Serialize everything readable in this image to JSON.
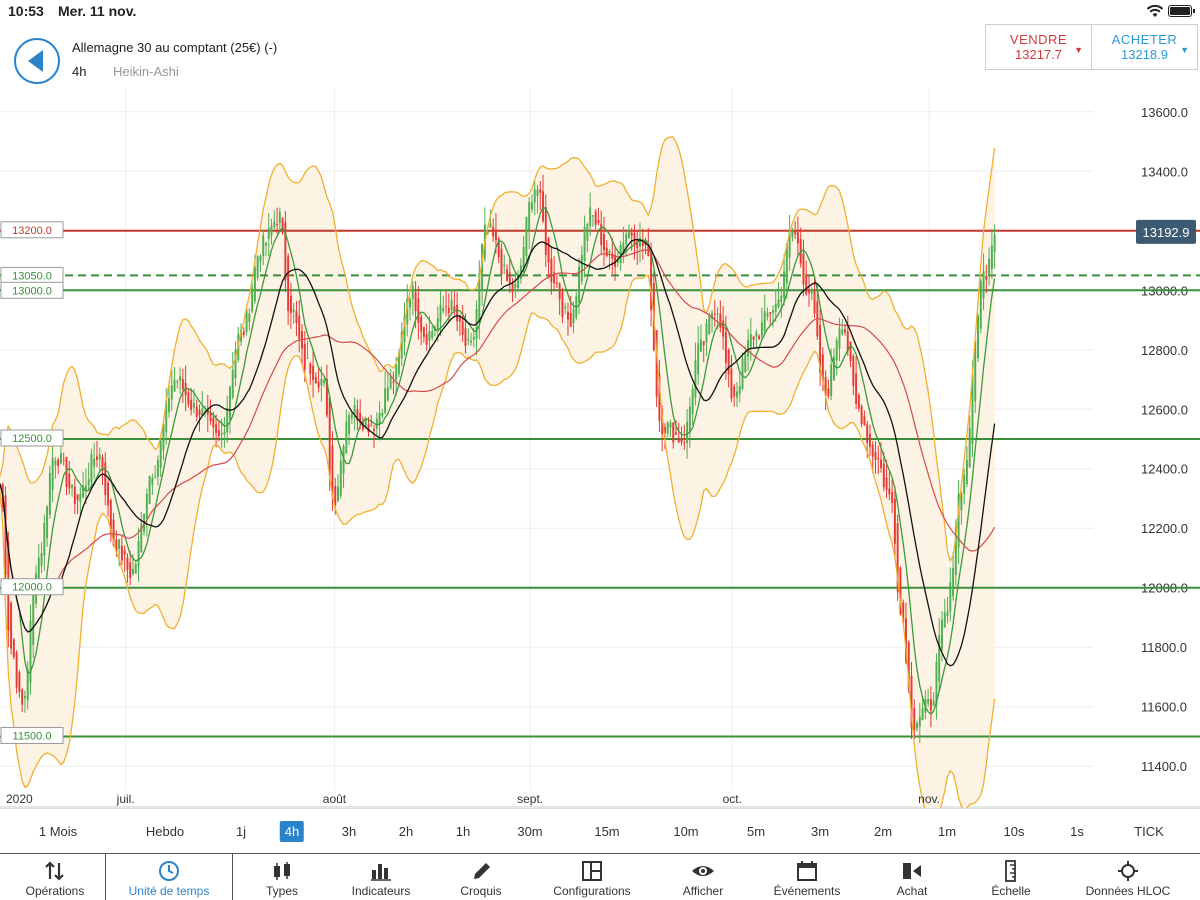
{
  "status_bar": {
    "time": "10:53",
    "date": "Mer. 11 nov."
  },
  "header": {
    "title": "Allemagne 30 au comptant (25€) (-)",
    "timeframe": "4h",
    "chart_type": "Heikin-Ashi"
  },
  "trade": {
    "sell_label": "VENDRE",
    "sell_price": "13217.7",
    "buy_label": "ACHETER",
    "buy_price": "13218.9",
    "sell_color": "#d23b3b",
    "buy_color": "#2b9ad3"
  },
  "chart_data": {
    "type": "candlestick",
    "y_ticks": [
      "13600.0",
      "13400.0",
      "13200.0",
      "13000.0",
      "12800.0",
      "12600.0",
      "12400.0",
      "12200.0",
      "12000.0",
      "11800.0",
      "11600.0",
      "11400.0"
    ],
    "ylim": [
      11320,
      13680
    ],
    "x_labels": [
      {
        "label": "2020",
        "t": 0
      },
      {
        "label": "juil.",
        "t": 0.115
      },
      {
        "label": "août",
        "t": 0.306
      },
      {
        "label": "sept.",
        "t": 0.485
      },
      {
        "label": "oct.",
        "t": 0.67
      },
      {
        "label": "nov.",
        "t": 0.85
      }
    ],
    "current_price": "13192.9",
    "current_value": 13192.9,
    "levels": [
      {
        "label": "13200.0",
        "value": 13200,
        "color": "#c0392b",
        "style": "solid"
      },
      {
        "label": "13050.0",
        "value": 13050,
        "color": "#3a8f3a",
        "style": "dashed"
      },
      {
        "label": "13000.0",
        "value": 13000,
        "color": "#3a8f3a",
        "style": "solid"
      },
      {
        "label": "12500.0",
        "value": 12500,
        "color": "#3a8f3a",
        "style": "solid"
      },
      {
        "label": "12000.0",
        "value": 12000,
        "color": "#3a8f3a",
        "style": "solid"
      },
      {
        "label": "11500.0",
        "value": 11500,
        "color": "#3a8f3a",
        "style": "solid"
      }
    ],
    "price_path": [
      [
        0,
        12350
      ],
      [
        0.01,
        11800
      ],
      [
        0.02,
        11600
      ],
      [
        0.035,
        12100
      ],
      [
        0.05,
        12450
      ],
      [
        0.07,
        12300
      ],
      [
        0.09,
        12450
      ],
      [
        0.105,
        12150
      ],
      [
        0.12,
        12050
      ],
      [
        0.14,
        12400
      ],
      [
        0.16,
        12700
      ],
      [
        0.18,
        12600
      ],
      [
        0.2,
        12500
      ],
      [
        0.22,
        12850
      ],
      [
        0.24,
        13150
      ],
      [
        0.255,
        13250
      ],
      [
        0.265,
        12950
      ],
      [
        0.28,
        12750
      ],
      [
        0.295,
        12700
      ],
      [
        0.305,
        12300
      ],
      [
        0.32,
        12600
      ],
      [
        0.34,
        12550
      ],
      [
        0.36,
        12700
      ],
      [
        0.375,
        13000
      ],
      [
        0.39,
        12850
      ],
      [
        0.41,
        12950
      ],
      [
        0.43,
        12800
      ],
      [
        0.445,
        13200
      ],
      [
        0.47,
        13000
      ],
      [
        0.49,
        13350
      ],
      [
        0.505,
        13050
      ],
      [
        0.52,
        12900
      ],
      [
        0.54,
        13250
      ],
      [
        0.56,
        13100
      ],
      [
        0.575,
        13200
      ],
      [
        0.59,
        13150
      ],
      [
        0.605,
        12550
      ],
      [
        0.625,
        12500
      ],
      [
        0.64,
        12800
      ],
      [
        0.655,
        12950
      ],
      [
        0.67,
        12650
      ],
      [
        0.69,
        12850
      ],
      [
        0.71,
        12950
      ],
      [
        0.725,
        13200
      ],
      [
        0.74,
        13000
      ],
      [
        0.755,
        12650
      ],
      [
        0.77,
        12900
      ],
      [
        0.785,
        12600
      ],
      [
        0.8,
        12450
      ],
      [
        0.815,
        12300
      ],
      [
        0.825,
        11900
      ],
      [
        0.835,
        11550
      ],
      [
        0.85,
        11600
      ],
      [
        0.865,
        11900
      ],
      [
        0.88,
        12350
      ],
      [
        0.9,
        13050
      ],
      [
        0.91,
        13200
      ]
    ],
    "series": [
      {
        "name": "MA noire",
        "color": "#111111"
      },
      {
        "name": "MA rouge",
        "color": "#d44b4b"
      },
      {
        "name": "MA verte",
        "color": "#3a9a3a"
      },
      {
        "name": "Bandes de Bollinger",
        "color": "#f0b030"
      }
    ],
    "up_color": "#4caf50",
    "down_color": "#e53935",
    "band_fill": "#fdf3e4"
  },
  "timeframes": {
    "items": [
      "1 Mois",
      "Hebdo",
      "1j",
      "4h",
      "3h",
      "2h",
      "1h",
      "30m",
      "15m",
      "10m",
      "5m",
      "3m",
      "2m",
      "1m",
      "10s",
      "1s",
      "TICK"
    ],
    "active": "4h"
  },
  "toolbar": {
    "items": [
      {
        "label": "Opérations",
        "icon": "operations-icon"
      },
      {
        "label": "Unité de temps",
        "icon": "clock-icon"
      },
      {
        "label": "Types",
        "icon": "candles-icon"
      },
      {
        "label": "Indicateurs",
        "icon": "indicators-icon"
      },
      {
        "label": "Croquis",
        "icon": "pencil-icon"
      },
      {
        "label": "Configurations",
        "icon": "layout-icon"
      },
      {
        "label": "Afficher",
        "icon": "eye-icon"
      },
      {
        "label": "Événements",
        "icon": "calendar-icon"
      },
      {
        "label": "Achat",
        "icon": "buy-icon"
      },
      {
        "label": "Échelle",
        "icon": "scale-icon"
      },
      {
        "label": "Données HLOC",
        "icon": "crosshair-icon"
      }
    ],
    "active": "Unité de temps"
  }
}
